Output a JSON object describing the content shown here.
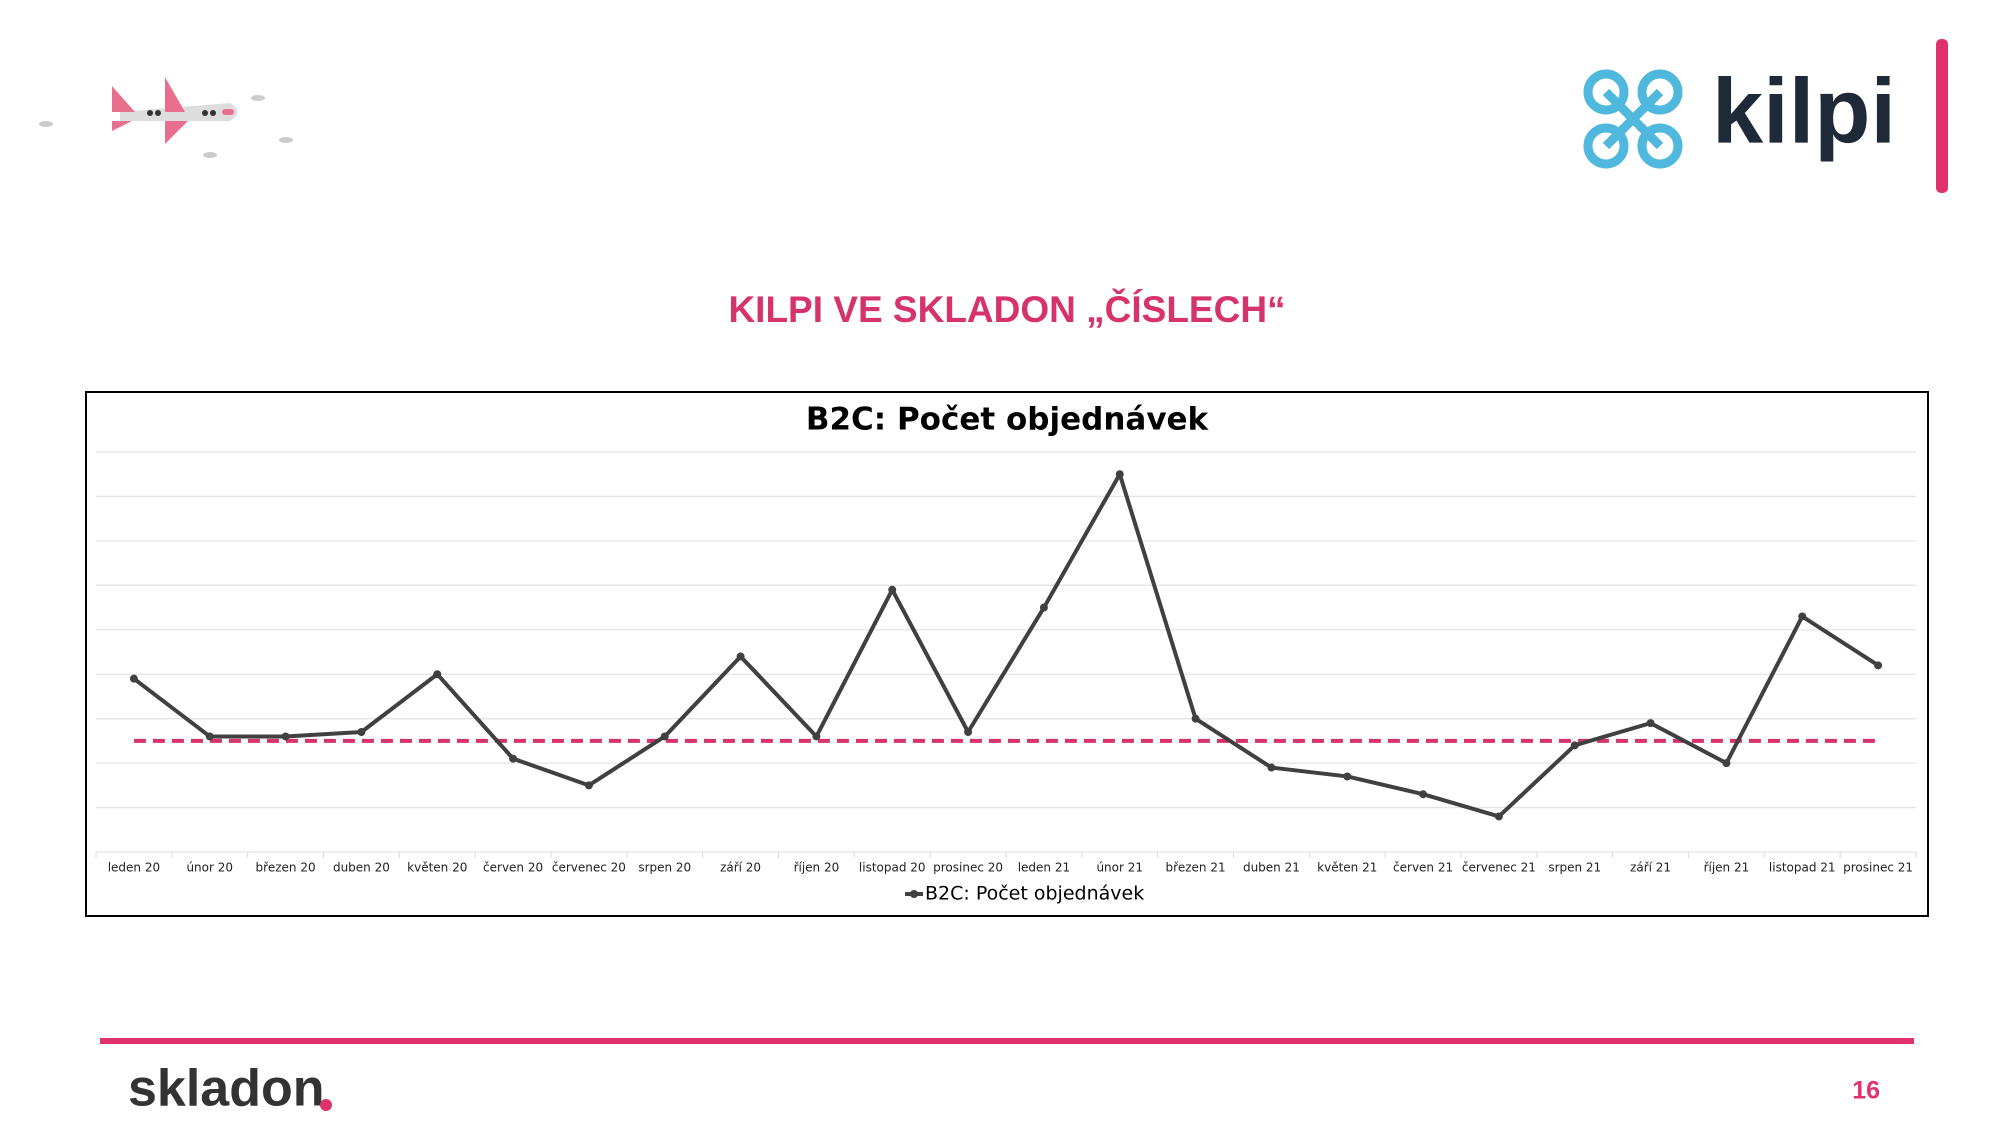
{
  "slide_title": "KILPI VE SKLADON „ČÍSLECH“",
  "page_number": "16",
  "logos": {
    "client": "kilpi",
    "brand": "skladon"
  },
  "chart_data": {
    "type": "line",
    "title": "B2C: Počet objednávek",
    "categories": [
      "leden 20",
      "únor 20",
      "březen 20",
      "duben 20",
      "květen 20",
      "červen 20",
      "červenec 20",
      "srpen 20",
      "září 20",
      "říjen 20",
      "listopad 20",
      "prosinec 20",
      "leden 21",
      "únor 21",
      "březen 21",
      "duben 21",
      "květen 21",
      "červen 21",
      "červenec 21",
      "srpen 21",
      "září 21",
      "říjen 21",
      "listopad 21",
      "prosinec 21"
    ],
    "series": [
      {
        "name": "B2C: Počet objednávek",
        "color": "#404040",
        "values": [
          3.9,
          2.6,
          2.6,
          2.7,
          4.0,
          2.1,
          1.5,
          2.6,
          4.4,
          2.6,
          5.9,
          2.7,
          5.5,
          8.5,
          3.0,
          1.9,
          1.7,
          1.3,
          0.8,
          2.4,
          2.9,
          2.0,
          5.3,
          4.2
        ]
      }
    ],
    "reference_line": {
      "value": 2.5,
      "color": "#d6336c"
    },
    "ylim": [
      0,
      9
    ],
    "yticks": [
      0,
      1,
      2,
      3,
      4,
      5,
      6,
      7,
      8,
      9
    ],
    "show_ytick_labels": false,
    "grid": true,
    "legend": "bottom"
  }
}
